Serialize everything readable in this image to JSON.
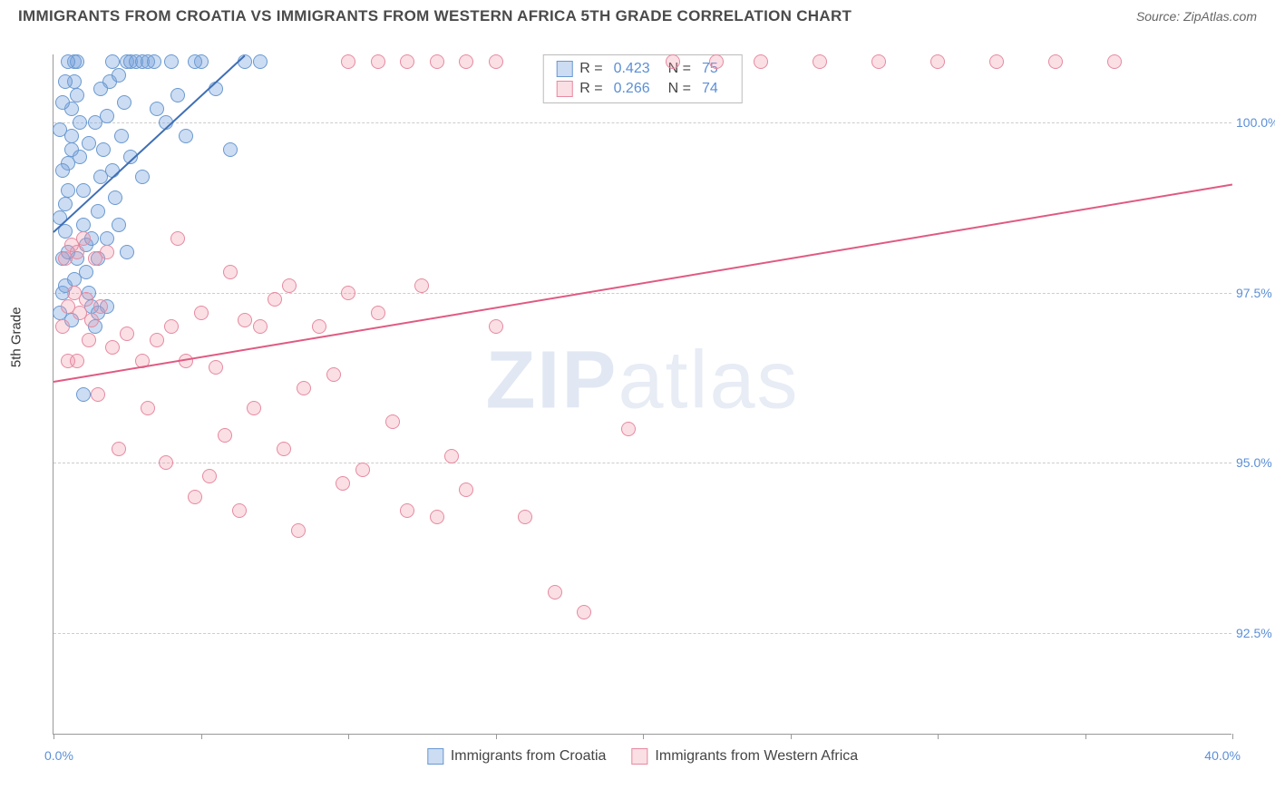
{
  "title": "IMMIGRANTS FROM CROATIA VS IMMIGRANTS FROM WESTERN AFRICA 5TH GRADE CORRELATION CHART",
  "source": "Source: ZipAtlas.com",
  "watermark_a": "ZIP",
  "watermark_b": "atlas",
  "y_axis_title": "5th Grade",
  "chart": {
    "type": "scatter",
    "xlim": [
      0,
      40
    ],
    "ylim": [
      91,
      101
    ],
    "x_label_min": "0.0%",
    "x_label_max": "40.0%",
    "x_ticks": [
      0,
      5,
      10,
      15,
      20,
      25,
      30,
      35,
      40
    ],
    "y_gridlines": [
      {
        "v": 100.0,
        "label": "100.0%"
      },
      {
        "v": 97.5,
        "label": "97.5%"
      },
      {
        "v": 95.0,
        "label": "95.0%"
      },
      {
        "v": 92.5,
        "label": "92.5%"
      }
    ],
    "background_color": "#ffffff",
    "grid_color": "#cccccc",
    "series": [
      {
        "name": "Immigrants from Croatia",
        "fill": "rgba(121,163,220,0.38)",
        "stroke": "#6a99d0",
        "line_color": "#3f6fb5",
        "R": "0.423",
        "N": "75",
        "trend": {
          "x1": 0,
          "y1": 98.4,
          "x2": 6.5,
          "y2": 101
        },
        "points": [
          [
            0.2,
            97.2
          ],
          [
            0.3,
            97.5
          ],
          [
            0.3,
            98.0
          ],
          [
            0.4,
            98.4
          ],
          [
            0.4,
            98.8
          ],
          [
            0.5,
            99.0
          ],
          [
            0.5,
            99.4
          ],
          [
            0.6,
            99.6
          ],
          [
            0.6,
            99.8
          ],
          [
            0.6,
            100.2
          ],
          [
            0.7,
            100.6
          ],
          [
            0.7,
            100.9
          ],
          [
            0.8,
            100.9
          ],
          [
            0.8,
            100.4
          ],
          [
            0.9,
            100.0
          ],
          [
            0.9,
            99.5
          ],
          [
            1.0,
            99.0
          ],
          [
            1.0,
            98.5
          ],
          [
            1.1,
            98.2
          ],
          [
            1.1,
            97.8
          ],
          [
            1.2,
            97.5
          ],
          [
            1.3,
            97.3
          ],
          [
            1.4,
            97.0
          ],
          [
            1.5,
            98.0
          ],
          [
            1.5,
            98.7
          ],
          [
            1.6,
            99.2
          ],
          [
            1.7,
            99.6
          ],
          [
            1.8,
            100.1
          ],
          [
            1.9,
            100.6
          ],
          [
            2.0,
            100.9
          ],
          [
            2.0,
            99.3
          ],
          [
            2.1,
            98.9
          ],
          [
            2.2,
            98.5
          ],
          [
            2.3,
            99.8
          ],
          [
            2.4,
            100.3
          ],
          [
            2.5,
            100.9
          ],
          [
            2.6,
            100.9
          ],
          [
            2.8,
            100.9
          ],
          [
            3.0,
            100.9
          ],
          [
            3.2,
            100.9
          ],
          [
            3.4,
            100.9
          ],
          [
            0.4,
            100.6
          ],
          [
            0.5,
            100.9
          ],
          [
            0.3,
            100.3
          ],
          [
            0.8,
            98.0
          ],
          [
            1.2,
            99.7
          ],
          [
            1.4,
            100.0
          ],
          [
            1.6,
            100.5
          ],
          [
            1.8,
            98.3
          ],
          [
            2.2,
            100.7
          ],
          [
            2.6,
            99.5
          ],
          [
            3.0,
            99.2
          ],
          [
            3.5,
            100.2
          ],
          [
            4.0,
            100.9
          ],
          [
            4.5,
            99.8
          ],
          [
            5.0,
            100.9
          ],
          [
            5.5,
            100.5
          ],
          [
            6.0,
            99.6
          ],
          [
            7.0,
            100.9
          ],
          [
            1.0,
            96.0
          ],
          [
            1.8,
            97.3
          ],
          [
            2.5,
            98.1
          ],
          [
            0.6,
            97.1
          ],
          [
            0.2,
            99.9
          ],
          [
            0.2,
            98.6
          ],
          [
            0.3,
            99.3
          ],
          [
            0.4,
            97.6
          ],
          [
            0.5,
            98.1
          ],
          [
            0.7,
            97.7
          ],
          [
            1.3,
            98.3
          ],
          [
            1.5,
            97.2
          ],
          [
            3.8,
            100.0
          ],
          [
            4.2,
            100.4
          ],
          [
            4.8,
            100.9
          ],
          [
            6.5,
            100.9
          ]
        ]
      },
      {
        "name": "Immigrants from Western Africa",
        "fill": "rgba(240,150,170,0.30)",
        "stroke": "#e68aa0",
        "line_color": "#e05a82",
        "R": "0.266",
        "N": "74",
        "trend": {
          "x1": 0,
          "y1": 96.2,
          "x2": 40,
          "y2": 99.1
        },
        "points": [
          [
            0.3,
            97.0
          ],
          [
            0.5,
            97.3
          ],
          [
            0.7,
            97.5
          ],
          [
            0.9,
            97.2
          ],
          [
            1.1,
            97.4
          ],
          [
            1.3,
            97.1
          ],
          [
            1.6,
            97.3
          ],
          [
            0.4,
            98.0
          ],
          [
            0.6,
            98.2
          ],
          [
            0.8,
            98.1
          ],
          [
            1.0,
            98.3
          ],
          [
            1.4,
            98.0
          ],
          [
            1.8,
            98.1
          ],
          [
            0.5,
            96.5
          ],
          [
            1.2,
            96.8
          ],
          [
            2.0,
            96.7
          ],
          [
            2.5,
            96.9
          ],
          [
            3.0,
            96.5
          ],
          [
            3.5,
            96.8
          ],
          [
            4.0,
            97.0
          ],
          [
            4.5,
            96.5
          ],
          [
            5.0,
            97.2
          ],
          [
            5.5,
            96.4
          ],
          [
            6.0,
            97.8
          ],
          [
            6.5,
            97.1
          ],
          [
            7.0,
            97.0
          ],
          [
            7.5,
            97.4
          ],
          [
            8.0,
            97.6
          ],
          [
            8.5,
            96.1
          ],
          [
            9.0,
            97.0
          ],
          [
            9.5,
            96.3
          ],
          [
            10.0,
            97.5
          ],
          [
            10.5,
            94.9
          ],
          [
            11.0,
            97.2
          ],
          [
            11.5,
            95.6
          ],
          [
            12.0,
            94.3
          ],
          [
            12.5,
            97.6
          ],
          [
            13.0,
            94.2
          ],
          [
            13.5,
            95.1
          ],
          [
            14.0,
            94.6
          ],
          [
            15.0,
            97.0
          ],
          [
            16.0,
            94.2
          ],
          [
            17.0,
            93.1
          ],
          [
            18.0,
            92.8
          ],
          [
            19.5,
            95.5
          ],
          [
            21.0,
            100.9
          ],
          [
            22.5,
            100.9
          ],
          [
            24.0,
            100.9
          ],
          [
            26.0,
            100.9
          ],
          [
            28.0,
            100.9
          ],
          [
            30.0,
            100.9
          ],
          [
            32.0,
            100.9
          ],
          [
            34.0,
            100.9
          ],
          [
            36.0,
            100.9
          ],
          [
            10.0,
            100.9
          ],
          [
            11.0,
            100.9
          ],
          [
            12.0,
            100.9
          ],
          [
            13.0,
            100.9
          ],
          [
            14.0,
            100.9
          ],
          [
            15.0,
            100.9
          ],
          [
            4.2,
            98.3
          ],
          [
            5.8,
            95.4
          ],
          [
            6.3,
            94.3
          ],
          [
            7.8,
            95.2
          ],
          [
            8.3,
            94.0
          ],
          [
            3.2,
            95.8
          ],
          [
            4.8,
            94.5
          ],
          [
            5.3,
            94.8
          ],
          [
            6.8,
            95.8
          ],
          [
            9.8,
            94.7
          ],
          [
            2.2,
            95.2
          ],
          [
            3.8,
            95.0
          ],
          [
            1.5,
            96.0
          ],
          [
            0.8,
            96.5
          ]
        ]
      }
    ]
  }
}
